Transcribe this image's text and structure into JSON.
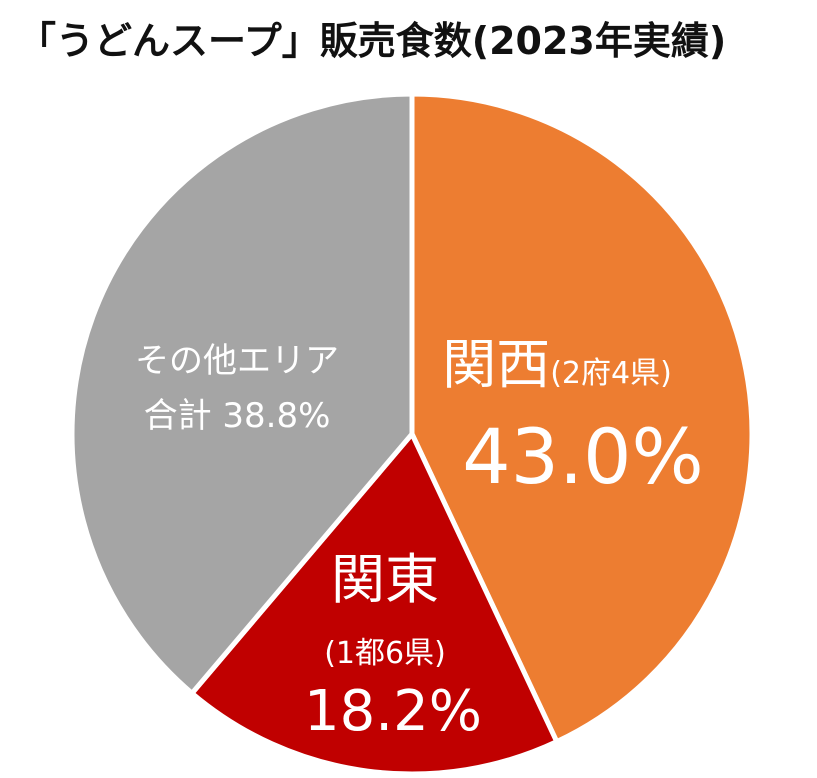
{
  "chart_data": {
    "type": "pie",
    "title": "「うどんスープ」販売食数(2023年実績)",
    "start_angle_deg": 0,
    "direction": "clockwise",
    "slices": [
      {
        "name": "関西",
        "sub": "(2府4県)",
        "value": 43.0,
        "value_label": "43.0%",
        "color": "#ED7D31"
      },
      {
        "name": "関東",
        "sub": "(1都6県)",
        "value": 18.2,
        "value_label": "18.2%",
        "color": "#C00000"
      },
      {
        "name": "その他エリア",
        "sub": "合計",
        "value": 38.8,
        "value_label": "38.8%",
        "color": "#A5A5A5"
      }
    ]
  }
}
